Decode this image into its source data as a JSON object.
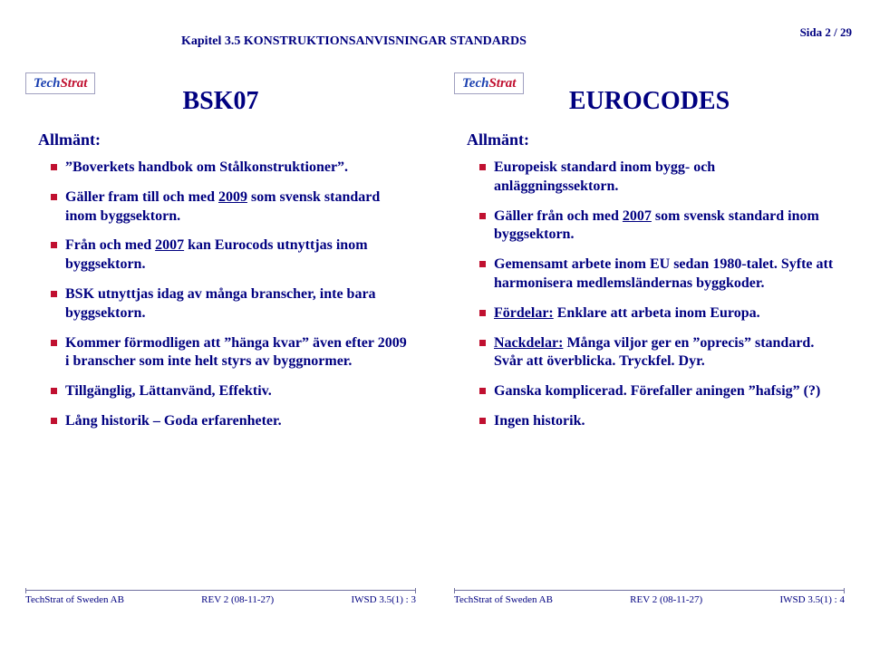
{
  "header": {
    "chapter": "Kapitel  3.5  KONSTRUKTIONSANVISNINGAR  STANDARDS",
    "page": "Sida 2 / 29"
  },
  "logo": {
    "part1": "Tech",
    "part2": "Strat"
  },
  "slide_left": {
    "title": "BSK07",
    "section": "Allmänt:",
    "items": [
      {
        "html": "”Boverkets handbok om Stålkonstruktioner”."
      },
      {
        "html": "Gäller fram till och med <span class=\"under\">2009</span> som svensk standard inom byggsektorn."
      },
      {
        "html": "Från och med <span class=\"under\">2007</span> kan Eurocods utnyttjas inom byggsektorn."
      },
      {
        "html": "BSK utnyttjas idag av många branscher, inte bara byggsektorn."
      },
      {
        "html": "Kommer förmodligen att ”hänga kvar” även efter 2009 i branscher som inte helt styrs av byggnormer."
      },
      {
        "html": "Tillgänglig, Lättanvänd, Effektiv."
      },
      {
        "html": "Lång historik – Goda erfarenheter."
      }
    ],
    "footer": {
      "left": "TechStrat of Sweden AB",
      "mid": "REV 2 (08-11-27)",
      "right": "IWSD 3.5(1) :  3"
    }
  },
  "slide_right": {
    "title": "EUROCODES",
    "section": "Allmänt:",
    "items": [
      {
        "html": "Europeisk standard inom bygg- och anläggningssektorn."
      },
      {
        "html": "Gäller från och med <span class=\"under\">2007</span> som svensk standard inom byggsektorn."
      },
      {
        "html": "Gemensamt arbete inom EU sedan 1980-talet. Syfte att harmonisera medlemsländernas byggkoder."
      },
      {
        "html": "<span class=\"under\">Fördelar:</span> Enklare att arbeta inom Europa."
      },
      {
        "html": "<span class=\"under\">Nackdelar:</span> Många viljor ger en ”oprecis” standard. Svår att överblicka. Tryckfel. Dyr."
      },
      {
        "html": "Ganska komplicerad. Förefaller aningen ”hafsig” (?)"
      },
      {
        "html": "Ingen historik."
      }
    ],
    "footer": {
      "left": "TechStrat of Sweden AB",
      "mid": "REV 2 (08-11-27)",
      "right": "IWSD 3.5(1) :  4"
    }
  }
}
